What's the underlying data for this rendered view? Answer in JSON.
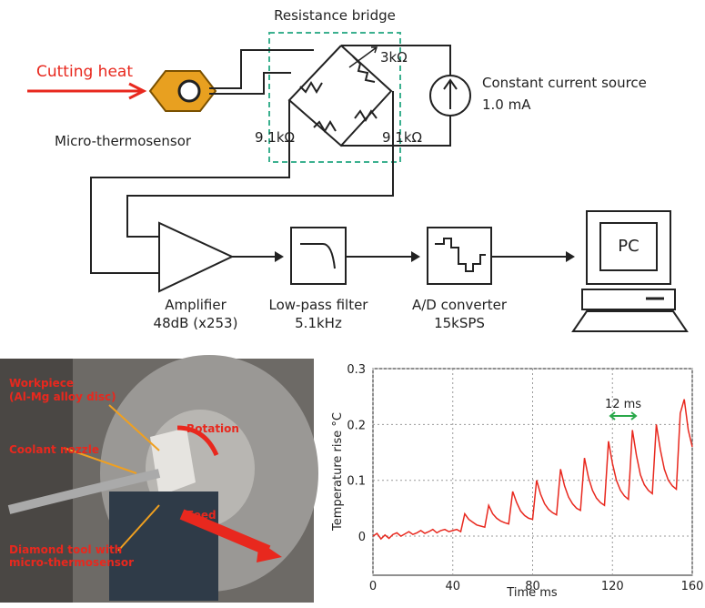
{
  "diagram": {
    "bridge_title": "Resistance bridge",
    "input": "Cutting heat",
    "sensor": "Micro-thermosensor",
    "resistors": [
      "3kΩ",
      "9.1kΩ",
      "9.1kΩ"
    ],
    "source": {
      "label": "Constant current source",
      "value": "1.0 mA"
    },
    "stages": [
      {
        "label": "Amplifier",
        "detail": "48dB (x253)"
      },
      {
        "label": "Low-pass filter",
        "detail": "5.1kHz"
      },
      {
        "label": "A/D converter",
        "detail": "15kSPS"
      }
    ],
    "computer": "PC"
  },
  "photo": {
    "labels": [
      "Workpiece",
      "(Al-Mg alloy disc)",
      "Rotation",
      "Coolant nozzle",
      "Feed",
      "Diamond tool with",
      "micro-thermosensor"
    ]
  },
  "chart_data": {
    "type": "line",
    "xlabel": "Time ms",
    "ylabel": "Temperature rise °C",
    "annotation": "12 ms",
    "xlim": [
      0,
      160
    ],
    "xticks": [
      0,
      40,
      80,
      120,
      160
    ],
    "ylim": [
      -0.07,
      0.3
    ],
    "yticks": [
      0,
      0.1,
      0.2,
      0.3
    ],
    "grid": true,
    "color": "#e8281e",
    "x": [
      0,
      2,
      4,
      6,
      8,
      10,
      12,
      14,
      16,
      18,
      20,
      22,
      24,
      26,
      28,
      30,
      32,
      34,
      36,
      38,
      40,
      42,
      44,
      46,
      48,
      50,
      52,
      54,
      56,
      58,
      60,
      62,
      64,
      66,
      68,
      70,
      72,
      74,
      76,
      78,
      80,
      82,
      84,
      86,
      88,
      90,
      92,
      94,
      96,
      98,
      100,
      102,
      104,
      106,
      108,
      110,
      112,
      114,
      116,
      118,
      120,
      122,
      124,
      126,
      128,
      130,
      132,
      134,
      136,
      138,
      140,
      142,
      144,
      146,
      148,
      150,
      152,
      154,
      156,
      158,
      160
    ],
    "values": [
      0,
      0.005,
      -0.005,
      0.002,
      -0.004,
      0.003,
      0.006,
      0,
      0.004,
      0.008,
      0.003,
      0.006,
      0.01,
      0.005,
      0.008,
      0.012,
      0.006,
      0.01,
      0.012,
      0.008,
      0.01,
      0.012,
      0.008,
      0.04,
      0.03,
      0.025,
      0.02,
      0.018,
      0.016,
      0.055,
      0.04,
      0.032,
      0.027,
      0.024,
      0.022,
      0.08,
      0.06,
      0.045,
      0.037,
      0.032,
      0.03,
      0.1,
      0.075,
      0.058,
      0.048,
      0.042,
      0.038,
      0.12,
      0.09,
      0.07,
      0.058,
      0.05,
      0.046,
      0.14,
      0.105,
      0.082,
      0.068,
      0.06,
      0.055,
      0.17,
      0.13,
      0.1,
      0.082,
      0.072,
      0.066,
      0.19,
      0.145,
      0.11,
      0.092,
      0.082,
      0.076,
      0.2,
      0.155,
      0.12,
      0.1,
      0.09,
      0.084,
      0.22,
      0.245,
      0.19,
      0.16
    ]
  }
}
